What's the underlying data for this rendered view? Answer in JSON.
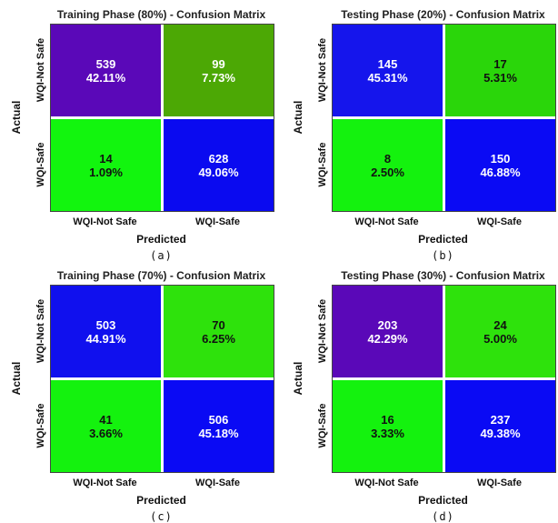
{
  "chart_data": [
    {
      "type": "heatmap",
      "title": "Training Phase (80%) - Confusion Matrix",
      "caption": "(a)",
      "xlabel": "Predicted",
      "ylabel": "Actual",
      "x_categories": [
        "WQI-Not Safe",
        "WQI-Safe"
      ],
      "y_categories": [
        "WQI-Not Safe",
        "WQI-Safe"
      ],
      "cells": [
        [
          {
            "count": "539",
            "percent": "42.11%",
            "color": "#5a08b8",
            "text_color": "#ffffff"
          },
          {
            "count": "99",
            "percent": "7.73%",
            "color": "#4ca805",
            "text_color": "#ffffff"
          }
        ],
        [
          {
            "count": "14",
            "percent": "1.09%",
            "color": "#12f50e",
            "text_color": "#111111"
          },
          {
            "count": "628",
            "percent": "49.06%",
            "color": "#0a0af0",
            "text_color": "#ffffff"
          }
        ]
      ]
    },
    {
      "type": "heatmap",
      "title": "Testing Phase (20%) - Confusion Matrix",
      "caption": "(b)",
      "xlabel": "Predicted",
      "ylabel": "Actual",
      "x_categories": [
        "WQI-Not Safe",
        "WQI-Safe"
      ],
      "y_categories": [
        "WQI-Not Safe",
        "WQI-Safe"
      ],
      "cells": [
        [
          {
            "count": "145",
            "percent": "45.31%",
            "color": "#1515ec",
            "text_color": "#ffffff"
          },
          {
            "count": "17",
            "percent": "5.31%",
            "color": "#2ad60a",
            "text_color": "#111111"
          }
        ],
        [
          {
            "count": "8",
            "percent": "2.50%",
            "color": "#14f20e",
            "text_color": "#111111"
          },
          {
            "count": "150",
            "percent": "46.88%",
            "color": "#0a0af4",
            "text_color": "#ffffff"
          }
        ]
      ]
    },
    {
      "type": "heatmap",
      "title": "Training Phase (70%) - Confusion Matrix",
      "caption": "(c)",
      "xlabel": "Predicted",
      "ylabel": "Actual",
      "x_categories": [
        "WQI-Not Safe",
        "WQI-Safe"
      ],
      "y_categories": [
        "WQI-Not Safe",
        "WQI-Safe"
      ],
      "cells": [
        [
          {
            "count": "503",
            "percent": "44.91%",
            "color": "#1010ee",
            "text_color": "#ffffff"
          },
          {
            "count": "70",
            "percent": "6.25%",
            "color": "#2ee20c",
            "text_color": "#111111"
          }
        ],
        [
          {
            "count": "41",
            "percent": "3.66%",
            "color": "#14f20e",
            "text_color": "#111111"
          },
          {
            "count": "506",
            "percent": "45.18%",
            "color": "#0a0af4",
            "text_color": "#ffffff"
          }
        ]
      ]
    },
    {
      "type": "heatmap",
      "title": "Testing Phase (30%) - Confusion Matrix",
      "caption": "(d)",
      "xlabel": "Predicted",
      "ylabel": "Actual",
      "x_categories": [
        "WQI-Not Safe",
        "WQI-Safe"
      ],
      "y_categories": [
        "WQI-Not Safe",
        "WQI-Safe"
      ],
      "cells": [
        [
          {
            "count": "203",
            "percent": "42.29%",
            "color": "#5a08b8",
            "text_color": "#ffffff"
          },
          {
            "count": "24",
            "percent": "5.00%",
            "color": "#2ee20c",
            "text_color": "#111111"
          }
        ],
        [
          {
            "count": "16",
            "percent": "3.33%",
            "color": "#14f20e",
            "text_color": "#111111"
          },
          {
            "count": "237",
            "percent": "49.38%",
            "color": "#0a0af4",
            "text_color": "#ffffff"
          }
        ]
      ]
    }
  ]
}
